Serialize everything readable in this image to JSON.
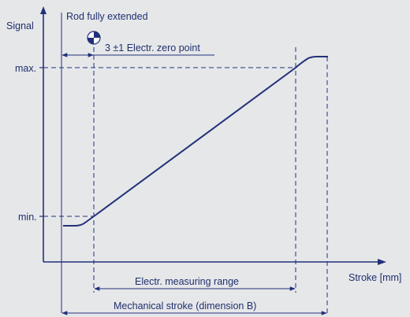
{
  "labels": {
    "signal": "Signal",
    "rod_fully_extended": "Rod fully extended",
    "zero_point": "3 ±1 Electr. zero point",
    "max": "max.",
    "min": "min.",
    "stroke": "Stroke [mm]",
    "measuring_range": "Electr. measuring range",
    "mechanical_stroke": "Mechanical stroke (dimension B)"
  },
  "icons": {
    "zero_point_marker": "center-of-mass-icon"
  },
  "colors": {
    "line": "#22307a",
    "background": "#e6e7e9"
  }
}
